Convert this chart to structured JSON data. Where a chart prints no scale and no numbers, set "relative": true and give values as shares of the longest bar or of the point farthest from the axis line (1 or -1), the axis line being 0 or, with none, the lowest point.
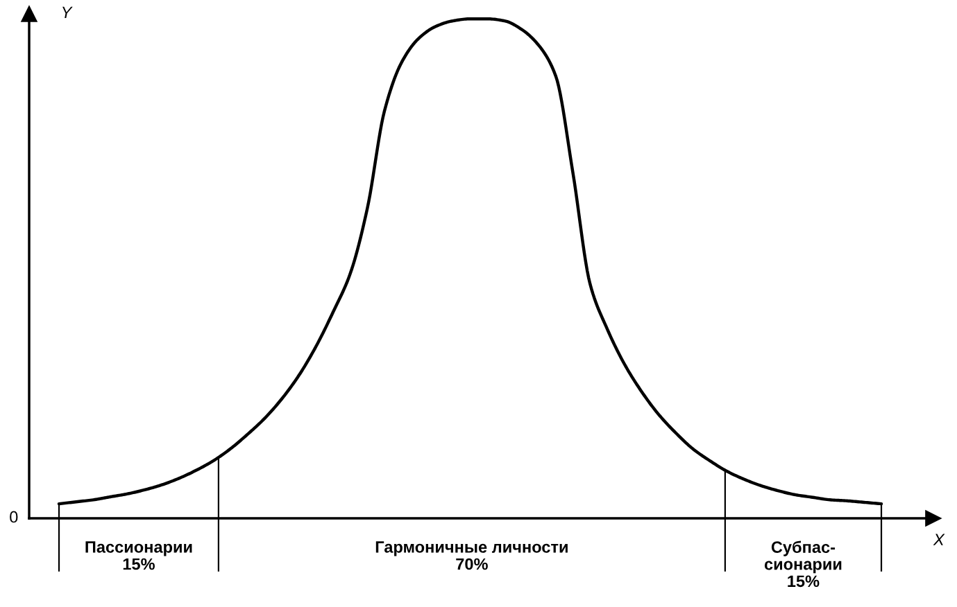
{
  "chart_data": {
    "type": "line",
    "relative": true,
    "xlabel": "X",
    "ylabel": "Y",
    "categories": [
      null,
      null,
      null,
      null,
      null,
      null,
      null,
      null,
      null,
      null,
      null,
      null,
      null,
      null,
      null,
      null,
      null,
      null,
      null,
      null,
      null,
      null,
      null,
      null,
      null,
      null,
      null,
      null,
      null,
      null,
      null,
      null,
      null,
      null,
      null,
      null,
      null,
      null,
      null,
      null,
      null,
      null,
      null,
      null,
      null,
      null,
      null,
      null,
      null
    ],
    "series": [
      {
        "color": "#000000",
        "values": [
          0.029,
          0.033,
          0.037,
          0.043,
          0.049,
          0.057,
          0.067,
          0.08,
          0.096,
          0.115,
          0.139,
          0.168,
          0.2,
          0.239,
          0.286,
          0.344,
          0.413,
          0.49,
          0.621,
          0.816,
          0.913,
          0.961,
          0.985,
          0.996,
          1.0,
          1.0,
          0.996,
          0.979,
          0.947,
          0.885,
          0.691,
          0.469,
          0.379,
          0.309,
          0.254,
          0.208,
          0.171,
          0.139,
          0.115,
          0.094,
          0.078,
          0.065,
          0.055,
          0.047,
          0.042,
          0.037,
          0.035,
          0.032,
          0.029
        ]
      }
    ],
    "annotations": [
      "0",
      "Пассионарии\n15%",
      "Гармоничные личности\n70%",
      "Субпас-\nсионарии\n15%"
    ],
    "marker": "none",
    "line_style": "solid"
  }
}
